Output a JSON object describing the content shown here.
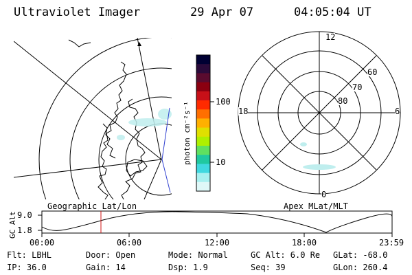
{
  "header": {
    "title": "Ultraviolet Imager",
    "date": "29 Apr 07",
    "time": "04:05:04 UT"
  },
  "colorbar": {
    "unit_label": "photon cm⁻²s⁻¹",
    "ticks": [
      "100",
      "10"
    ],
    "colors": [
      "#000033",
      "#2a0a3a",
      "#5a0b2f",
      "#8b0010",
      "#c81018",
      "#ff2a00",
      "#ff6f00",
      "#ffb000",
      "#e0e000",
      "#aef000",
      "#60e060",
      "#20c8a0",
      "#40d8e0",
      "#a8f0f0",
      "#dff8f8"
    ]
  },
  "left_map": {
    "caption": "Geographic Lat/Lon"
  },
  "right_map": {
    "caption": "Apex MLat/MLT",
    "mlt_labels": [
      "12",
      "18",
      "6",
      "0"
    ],
    "mlat_labels": [
      "60",
      "70",
      "80"
    ]
  },
  "orbit": {
    "ylabel": "GC Alt",
    "yticks": [
      "9.0",
      "1.8"
    ],
    "xticks": [
      "00:00",
      "06:00",
      "12:00",
      "18:00",
      "23:59"
    ]
  },
  "info": {
    "flt": "Flt: LBHL",
    "door": "Door: Open",
    "mode": "Mode: Normal",
    "gcalt": "GC Alt: 6.0 Re",
    "glat": "GLat: -68.0",
    "ip": "IP: 36.0",
    "gain": "Gain: 14",
    "dsp": "Dsp:    1.9",
    "seq": "Seq: 39",
    "glon": "GLon: 260.4"
  }
}
